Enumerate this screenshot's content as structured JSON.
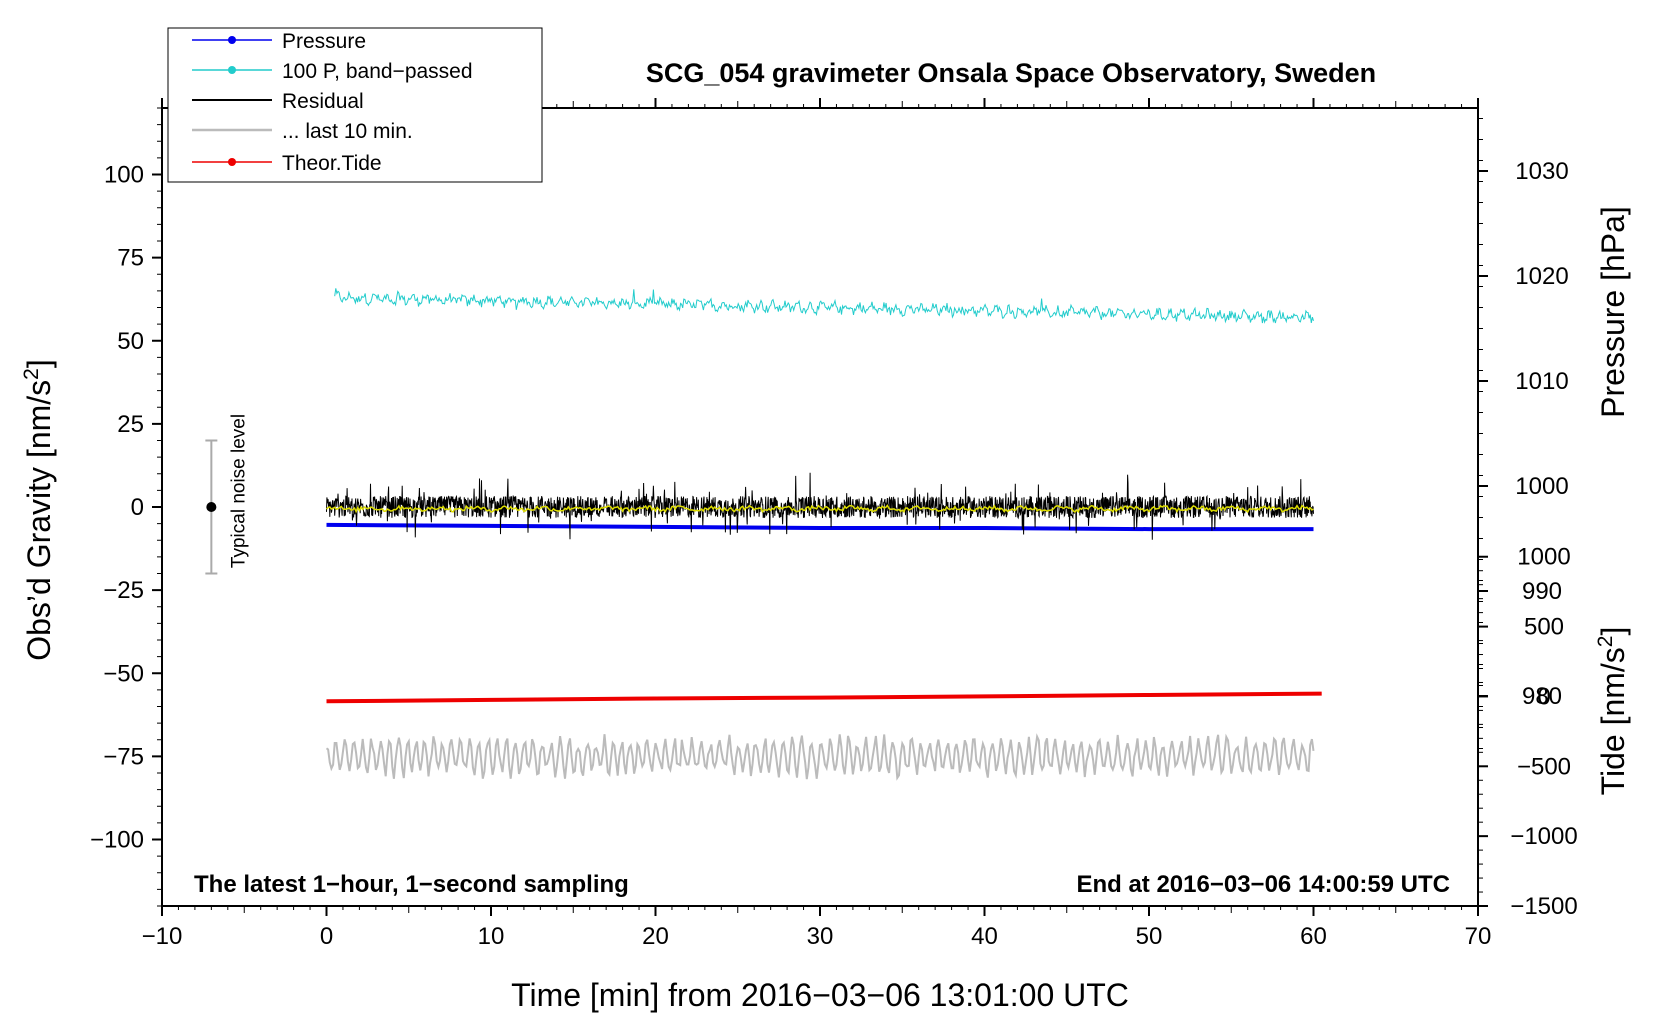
{
  "chart_data": {
    "type": "line",
    "title": "SCG_054 gravimeter Onsala Space Observatory, Sweden",
    "xlabel": "Time [min] from 2016−03−06 13:01:00 UTC",
    "ylabel_left": "Obs’d Gravity [nm/s²]",
    "ylabel_left_main": "Obs’d Gravity [nm/s",
    "ylabel_left_sup": "2",
    "ylabel_left_end": "]",
    "ylabel_right_top": "Pressure [hPa]",
    "ylabel_right_bottom": "Tide [nm/s²]",
    "ylabel_right_bottom_main": "Tide [nm/s",
    "ylabel_right_bottom_sup": "2",
    "ylabel_right_bottom_end": "]",
    "xlim": [
      -10,
      70
    ],
    "ylim": [
      -120,
      120
    ],
    "pressure_lim": [
      960,
      1036
    ],
    "tide_lim": [
      -1500,
      4212
    ],
    "x_ticks": [
      -10,
      0,
      10,
      20,
      30,
      40,
      50,
      60,
      70
    ],
    "x_tick_labels": [
      "−10",
      "0",
      "10",
      "20",
      "30",
      "40",
      "50",
      "60",
      "70"
    ],
    "y_ticks": [
      100,
      75,
      50,
      25,
      0,
      -25,
      -50,
      -75,
      -100
    ],
    "y_tick_labels": [
      "100",
      "75",
      "50",
      "25",
      "0",
      "−25",
      "−50",
      "−75",
      "−100"
    ],
    "pressure_ticks": [
      1030,
      1020,
      1010,
      1000,
      990,
      980
    ],
    "pressure_tick_labels": [
      "1030",
      "1020",
      "1010",
      "1000",
      "990",
      "980"
    ],
    "tide_ticks": [
      1000,
      500,
      0,
      -500,
      -1000,
      -1500
    ],
    "tide_tick_labels": [
      "1000",
      "500",
      "0",
      "−500",
      "−1000",
      "−1500"
    ],
    "legend": [
      {
        "label": "Pressure",
        "color": "#0000ee",
        "marker": true
      },
      {
        "label": "100 P, band−passed",
        "color": "#22cccc",
        "marker": true
      },
      {
        "label": "Residual",
        "color": "#000000",
        "marker": false
      },
      {
        "label": "... last 10 min.",
        "color": "#bbbbbb",
        "marker": false
      },
      {
        "label": "Theor.Tide",
        "color": "#ee0000",
        "marker": true
      }
    ],
    "series": [
      {
        "name": "Pressure",
        "axis": "pressure",
        "color": "#0000ee",
        "x": [
          0,
          10,
          20,
          30,
          40,
          50,
          60
        ],
        "values": [
          996.3,
          996.2,
          996.1,
          996.0,
          996.0,
          995.9,
          995.9
        ]
      },
      {
        "name": "100 P, band−passed",
        "axis": "gravity",
        "color": "#22cccc",
        "x_range": [
          0.5,
          60
        ],
        "values_start_end": [
          63,
          57
        ],
        "amplitude": 2.2
      },
      {
        "name": "Residual",
        "axis": "gravity",
        "color": "#000000",
        "x_range": [
          0,
          60
        ],
        "center": 0,
        "amplitude": 6
      },
      {
        "name": "Residual smoothed",
        "axis": "gravity",
        "color": "#dddd00",
        "x_range": [
          0,
          60
        ],
        "center": -0.5,
        "amplitude": 1
      },
      {
        "name": "... last 10 min.",
        "axis": "gravity",
        "color": "#bbbbbb",
        "x_range": [
          0,
          60
        ],
        "center": -75,
        "amplitude": 6
      },
      {
        "name": "Theor.Tide",
        "axis": "tide",
        "color": "#ee0000",
        "x": [
          0,
          10,
          20,
          30,
          40,
          50,
          60.5
        ],
        "values": [
          -35,
          -25,
          -15,
          -8,
          0,
          10,
          20
        ]
      }
    ],
    "noise_bar": {
      "label": "Typical noise level",
      "x": -7,
      "center": 0,
      "half_range": 20
    },
    "annotations": {
      "left": "The latest 1−hour, 1−second sampling",
      "right": "End at 2016−03−06 14:00:59 UTC"
    }
  }
}
